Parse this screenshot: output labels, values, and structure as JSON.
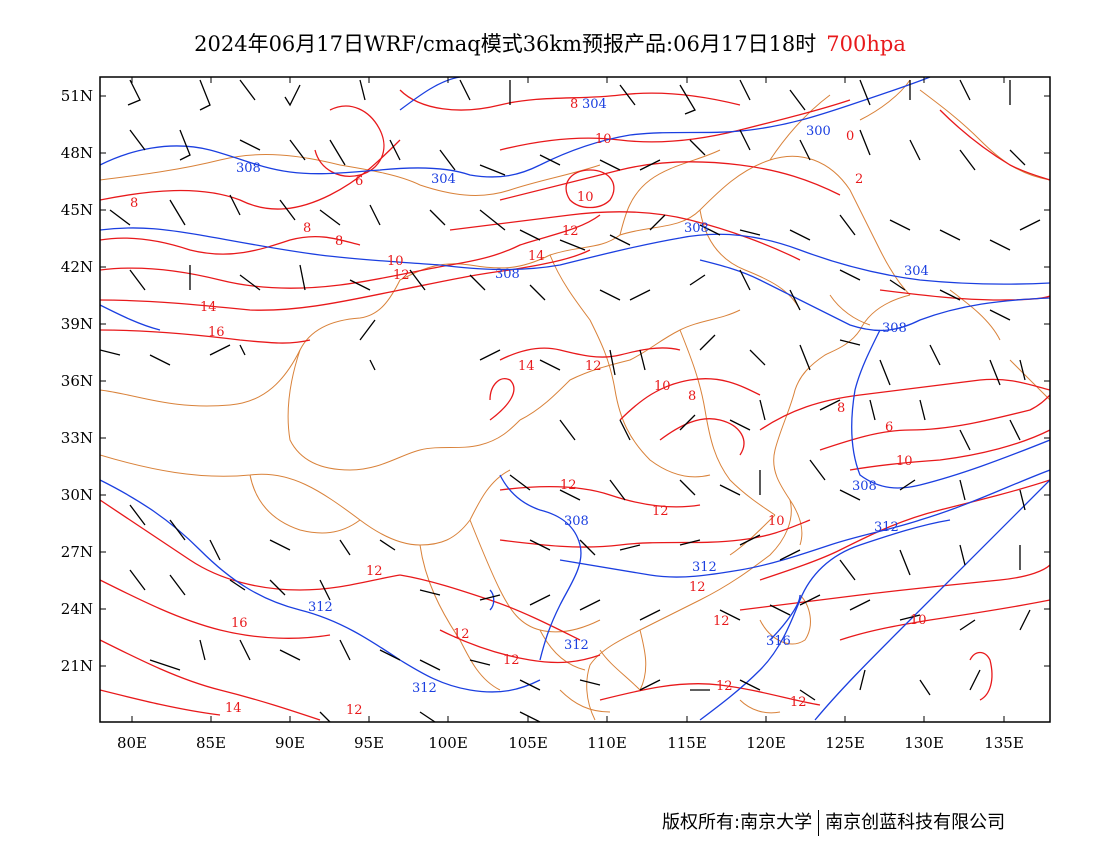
{
  "title": {
    "main": "2024年06月17日WRF/cmaq模式36km预报产品:06月17日18时",
    "level": "700hpa"
  },
  "colors": {
    "height": "#1b3fe0",
    "temperature": "#e8191b",
    "border": "#d9823a",
    "wind": "#000000"
  },
  "axes": {
    "lon_labels": [
      "80E",
      "85E",
      "90E",
      "95E",
      "100E",
      "105E",
      "110E",
      "115E",
      "120E",
      "125E",
      "130E",
      "135E"
    ],
    "lat_labels": [
      "51N",
      "48N",
      "45N",
      "42N",
      "39N",
      "36N",
      "33N",
      "30N",
      "27N",
      "24N",
      "21N"
    ]
  },
  "contour_labels": {
    "height": [
      "304",
      "300",
      "308",
      "304",
      "308",
      "308",
      "308",
      "304",
      "308",
      "308",
      "312",
      "308",
      "312",
      "312",
      "316",
      "312",
      "312"
    ],
    "temperature": [
      "8",
      "10",
      "0",
      "6",
      "10",
      "2",
      "8",
      "8",
      "12",
      "8",
      "10",
      "12",
      "14",
      "14",
      "16",
      "14",
      "12",
      "10",
      "8",
      "8",
      "6",
      "12",
      "12",
      "10",
      "12",
      "10",
      "12",
      "12",
      "16",
      "12",
      "12",
      "12",
      "14",
      "12",
      "10",
      "12"
    ]
  },
  "copyright": {
    "left": "版权所有:南京大学",
    "right": "南京创蓝科技有限公司"
  }
}
